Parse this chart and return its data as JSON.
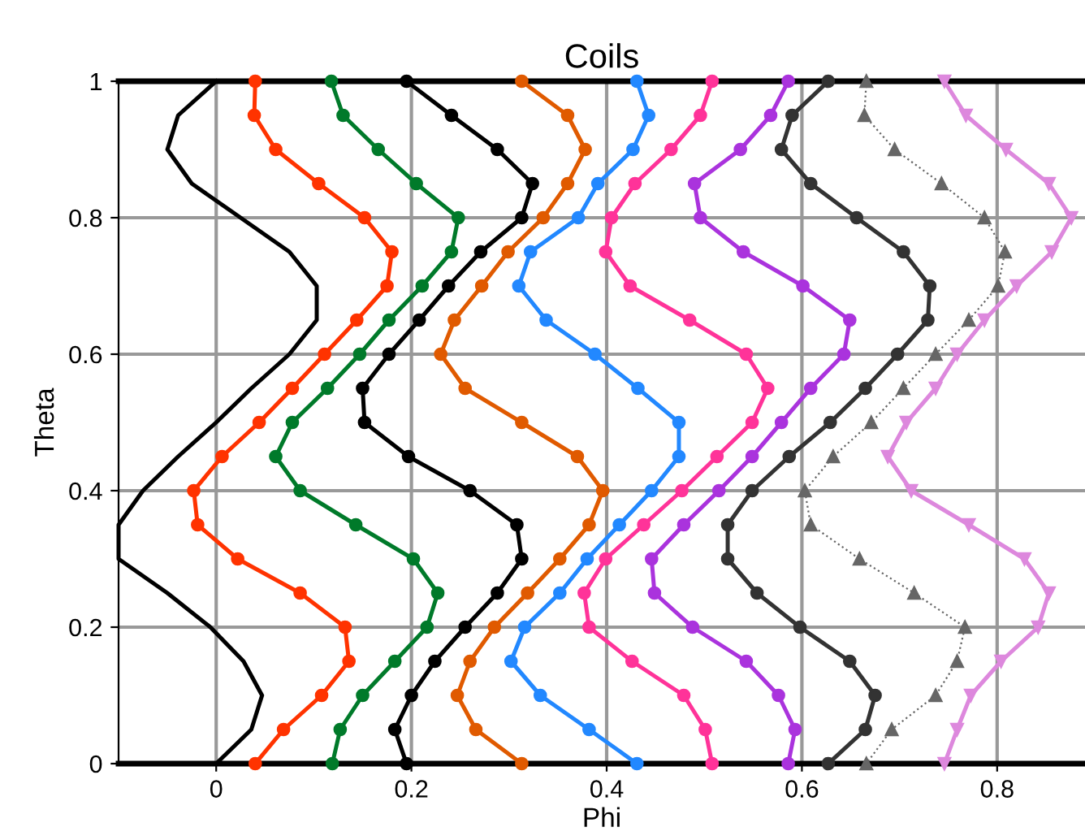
{
  "chart_data": {
    "type": "line",
    "title": "Coils",
    "xlabel": "Phi",
    "ylabel": "Theta",
    "xlim": [
      -0.1,
      0.89
    ],
    "ylim": [
      0,
      1
    ],
    "xticks": [
      0,
      0.2,
      0.4,
      0.6,
      0.8
    ],
    "yticks": [
      0,
      0.2,
      0.4,
      0.6,
      0.8,
      1
    ],
    "grid": true,
    "series": [
      {
        "color": "#000000",
        "marker": "none",
        "x": [
          0,
          -0.039,
          -0.05,
          -0.025,
          0.025,
          0.075,
          0.103,
          0.103,
          0.075,
          0.036,
          0,
          -0.039,
          -0.075,
          -0.1,
          -0.1,
          -0.05,
          -0.006,
          0.028,
          0.047,
          0.036,
          0
        ],
        "values": [
          1,
          0.95,
          0.9,
          0.85,
          0.8,
          0.75,
          0.7,
          0.65,
          0.6,
          0.55,
          0.5,
          0.45,
          0.4,
          0.35,
          0.3,
          0.25,
          0.2,
          0.15,
          0.1,
          0.05,
          0
        ]
      },
      {
        "color": "#ff3300",
        "marker": "circle",
        "x": [
          0.04,
          0.039,
          0.061,
          0.105,
          0.152,
          0.18,
          0.175,
          0.144,
          0.111,
          0.078,
          0.044,
          0.006,
          -0.023,
          -0.019,
          0.022,
          0.086,
          0.132,
          0.136,
          0.108,
          0.069,
          0.04
        ],
        "values": [
          1,
          0.95,
          0.9,
          0.85,
          0.8,
          0.75,
          0.7,
          0.65,
          0.6,
          0.55,
          0.5,
          0.45,
          0.4,
          0.35,
          0.3,
          0.25,
          0.2,
          0.15,
          0.1,
          0.05,
          0
        ]
      },
      {
        "color": "#007a2a",
        "marker": "circle",
        "x": [
          0.118,
          0.13,
          0.166,
          0.205,
          0.248,
          0.241,
          0.211,
          0.177,
          0.147,
          0.114,
          0.078,
          0.061,
          0.086,
          0.143,
          0.202,
          0.227,
          0.216,
          0.183,
          0.15,
          0.127,
          0.119
        ],
        "values": [
          1,
          0.95,
          0.9,
          0.85,
          0.8,
          0.75,
          0.7,
          0.65,
          0.6,
          0.55,
          0.5,
          0.45,
          0.4,
          0.35,
          0.3,
          0.25,
          0.2,
          0.15,
          0.1,
          0.05,
          0
        ]
      },
      {
        "color": "#000000",
        "marker": "circle",
        "x": [
          0.195,
          0.241,
          0.288,
          0.324,
          0.313,
          0.271,
          0.238,
          0.208,
          0.177,
          0.15,
          0.152,
          0.197,
          0.26,
          0.308,
          0.313,
          0.288,
          0.255,
          0.224,
          0.2,
          0.183,
          0.195
        ],
        "values": [
          1,
          0.95,
          0.9,
          0.85,
          0.8,
          0.75,
          0.7,
          0.65,
          0.6,
          0.55,
          0.5,
          0.45,
          0.4,
          0.35,
          0.3,
          0.25,
          0.2,
          0.15,
          0.1,
          0.05,
          0
        ]
      },
      {
        "color": "#e05a00",
        "marker": "circle",
        "x": [
          0.313,
          0.36,
          0.378,
          0.36,
          0.335,
          0.299,
          0.272,
          0.244,
          0.23,
          0.255,
          0.313,
          0.37,
          0.396,
          0.382,
          0.352,
          0.319,
          0.285,
          0.26,
          0.247,
          0.266,
          0.313
        ],
        "values": [
          1,
          0.95,
          0.9,
          0.85,
          0.8,
          0.75,
          0.7,
          0.65,
          0.6,
          0.55,
          0.5,
          0.45,
          0.4,
          0.35,
          0.3,
          0.25,
          0.2,
          0.15,
          0.1,
          0.05,
          0
        ]
      },
      {
        "color": "#2288ff",
        "marker": "circle",
        "x": [
          0.431,
          0.443,
          0.427,
          0.391,
          0.371,
          0.322,
          0.31,
          0.338,
          0.388,
          0.432,
          0.474,
          0.474,
          0.446,
          0.413,
          0.38,
          0.352,
          0.316,
          0.302,
          0.332,
          0.382,
          0.431
        ],
        "values": [
          1,
          0.95,
          0.9,
          0.85,
          0.8,
          0.75,
          0.7,
          0.65,
          0.6,
          0.55,
          0.5,
          0.45,
          0.4,
          0.35,
          0.3,
          0.25,
          0.2,
          0.15,
          0.1,
          0.05,
          0
        ]
      },
      {
        "color": "#ff3399",
        "marker": "circle",
        "x": [
          0.508,
          0.496,
          0.466,
          0.429,
          0.405,
          0.399,
          0.424,
          0.485,
          0.543,
          0.565,
          0.549,
          0.513,
          0.477,
          0.438,
          0.399,
          0.377,
          0.382,
          0.426,
          0.479,
          0.501,
          0.508
        ],
        "values": [
          1,
          0.95,
          0.9,
          0.85,
          0.8,
          0.75,
          0.7,
          0.65,
          0.6,
          0.55,
          0.5,
          0.45,
          0.4,
          0.35,
          0.3,
          0.25,
          0.2,
          0.15,
          0.1,
          0.05,
          0
        ]
      },
      {
        "color": "#aa33dd",
        "marker": "circle",
        "x": [
          0.586,
          0.568,
          0.537,
          0.49,
          0.496,
          0.54,
          0.601,
          0.649,
          0.643,
          0.609,
          0.579,
          0.549,
          0.515,
          0.479,
          0.446,
          0.449,
          0.488,
          0.543,
          0.576,
          0.593,
          0.586
        ],
        "values": [
          1,
          0.95,
          0.9,
          0.85,
          0.8,
          0.75,
          0.7,
          0.65,
          0.6,
          0.55,
          0.5,
          0.45,
          0.4,
          0.35,
          0.3,
          0.25,
          0.2,
          0.15,
          0.1,
          0.05,
          0
        ]
      },
      {
        "color": "#333333",
        "marker": "circle",
        "x": [
          0.627,
          0.59,
          0.579,
          0.609,
          0.656,
          0.704,
          0.731,
          0.729,
          0.698,
          0.665,
          0.629,
          0.587,
          0.549,
          0.524,
          0.524,
          0.554,
          0.598,
          0.649,
          0.675,
          0.665,
          0.627
        ],
        "values": [
          1,
          0.95,
          0.9,
          0.85,
          0.8,
          0.75,
          0.7,
          0.65,
          0.6,
          0.55,
          0.5,
          0.45,
          0.4,
          0.35,
          0.3,
          0.25,
          0.2,
          0.15,
          0.1,
          0.05,
          0
        ]
      },
      {
        "color": "#666666",
        "marker": "triangle",
        "line_style": "dotted",
        "x": [
          0.666,
          0.664,
          0.695,
          0.743,
          0.787,
          0.808,
          0.801,
          0.771,
          0.737,
          0.704,
          0.671,
          0.632,
          0.603,
          0.609,
          0.659,
          0.715,
          0.767,
          0.759,
          0.737,
          0.692,
          0.666
        ],
        "values": [
          1,
          0.95,
          0.9,
          0.85,
          0.8,
          0.75,
          0.7,
          0.65,
          0.6,
          0.55,
          0.5,
          0.45,
          0.4,
          0.35,
          0.3,
          0.25,
          0.2,
          0.15,
          0.1,
          0.05,
          0
        ]
      },
      {
        "color": "#dd88dd",
        "marker": "triangle_down",
        "x": [
          0.746,
          0.768,
          0.809,
          0.853,
          0.876,
          0.856,
          0.82,
          0.787,
          0.759,
          0.737,
          0.707,
          0.688,
          0.712,
          0.771,
          0.828,
          0.853,
          0.842,
          0.804,
          0.773,
          0.759,
          0.746
        ],
        "values": [
          1,
          0.95,
          0.9,
          0.85,
          0.8,
          0.75,
          0.7,
          0.65,
          0.6,
          0.55,
          0.5,
          0.45,
          0.4,
          0.35,
          0.3,
          0.25,
          0.2,
          0.15,
          0.1,
          0.05,
          0
        ]
      }
    ]
  }
}
